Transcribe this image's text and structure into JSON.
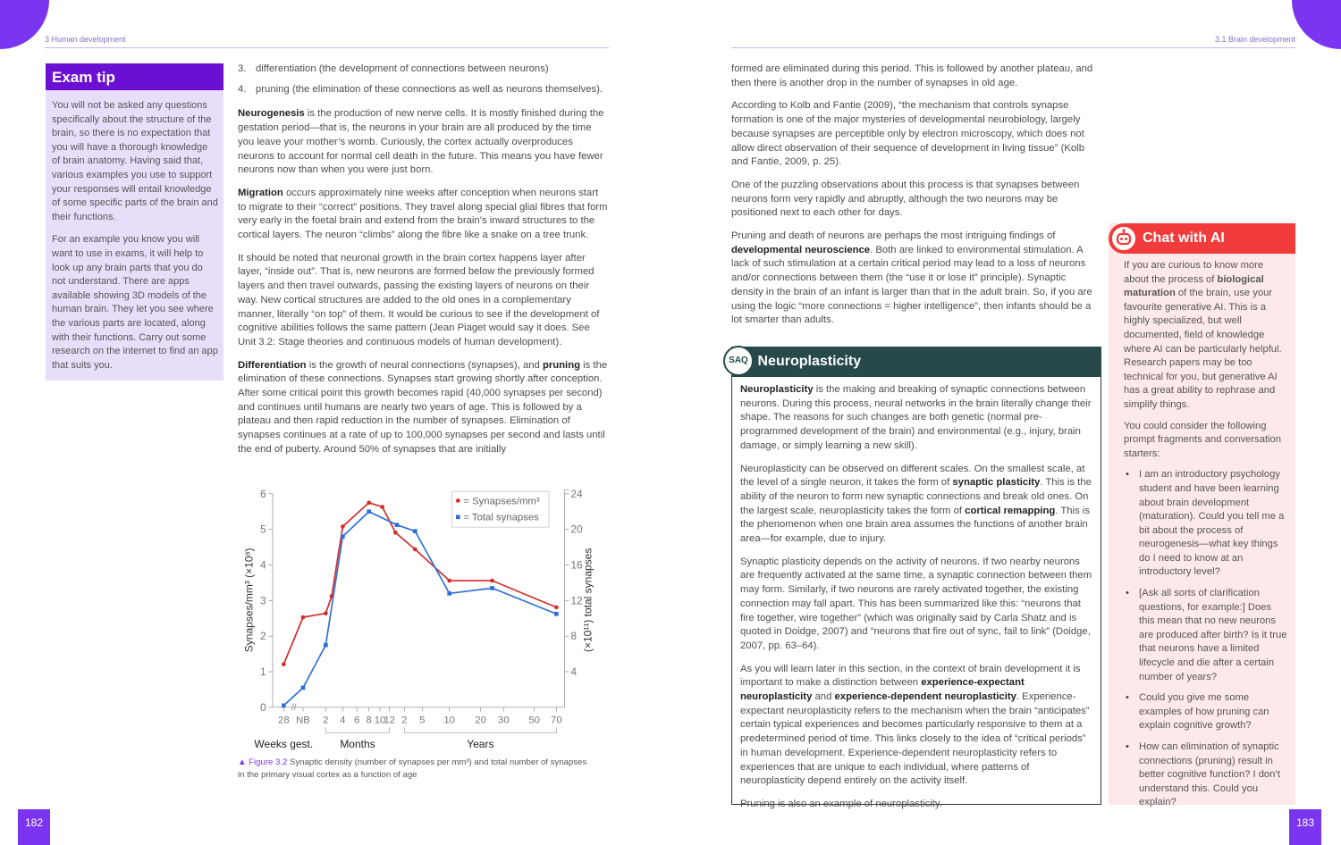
{
  "left_page": {
    "running_head": "3  Human development",
    "page_number": "182",
    "exam_tip": {
      "title": "Exam tip",
      "paragraphs": [
        "You will not be asked any questions specifically about the structure of the brain, so there is no expectation that you will have a thorough knowledge of brain anatomy. Having said that, various examples you use to support your responses will entail knowledge of some specific parts of the brain and their functions.",
        "For an example you know you will want to use in exams, it will help to look up any brain parts that you do not understand. There are apps available showing 3D models of the human brain. They let you see where the various parts are located, along with their functions. Carry out some research on the internet to find an app that suits you."
      ]
    },
    "list": [
      {
        "n": "3.",
        "text": "differentiation (the development of connections between neurons)"
      },
      {
        "n": "4.",
        "text": "pruning (the elimination of these connections as well as neurons themselves)."
      }
    ],
    "paragraphs": [
      [
        {
          "t": "Neurogenesis",
          "b": true
        },
        {
          "t": " is the production of new nerve cells. It is mostly finished during the gestation period—that is, the neurons in your brain are all produced by the time you leave your mother’s womb. Curiously, the cortex actually overproduces neurons to account for normal cell death in the future. This means you have fewer neurons now than when you were just born."
        }
      ],
      [
        {
          "t": "Migration",
          "b": true
        },
        {
          "t": " occurs approximately nine weeks after conception when neurons start to migrate to their “correct” positions. They travel along special glial fibres that form very early in the foetal brain and extend from the brain’s inward structures to the cortical layers. The neuron “climbs” along the fibre like a snake on a tree trunk."
        }
      ],
      [
        {
          "t": "It should be noted that neuronal growth in the brain cortex happens layer after layer, “inside out”. That is, new neurons are formed below the previously formed layers and then travel outwards, passing the existing layers of neurons on their way. New cortical structures are added to the old ones in a complementary manner, literally “on top” of them. It would be curious to see if the development of cognitive abilities follows the same pattern (Jean Piaget would say it does. See Unit 3.2: Stage theories and continuous models of human development)."
        }
      ],
      [
        {
          "t": "Differentiation",
          "b": true
        },
        {
          "t": " is the growth of neural connections (synapses), and "
        },
        {
          "t": "pruning",
          "b": true
        },
        {
          "t": " is the elimination of these connections. Synapses start growing shortly after conception. After some critical point this growth becomes rapid (40,000 synapses per second) and continues until humans are nearly two years of age. This is followed by a plateau and then rapid reduction in the number of synapses. Elimination of synapses continues at a rate of up to 100,000 synapses per second and lasts until the end of puberty. Around 50% of synapses that are initially"
        }
      ]
    ],
    "figure_caption": {
      "label": "Figure 3.2",
      "text": "Synaptic density (number of synapses per mm³) and total number of synapses in the primary visual cortex as a function of age"
    }
  },
  "chart_data": {
    "type": "line",
    "ylabel": "Synapses/mm³ (×10⁸)",
    "y2label": "(×10¹¹) total synapses",
    "ylim": [
      0,
      6
    ],
    "y2lim": [
      0,
      24
    ],
    "yticks": [
      "0",
      "1",
      "2",
      "3",
      "4",
      "5",
      "6"
    ],
    "y2ticks": [
      "4",
      "8",
      "12",
      "16",
      "20",
      "24"
    ],
    "xticks": [
      "28",
      "NB",
      "2",
      "4",
      "6",
      "8",
      "10",
      "12",
      "2",
      "5",
      "10",
      "20",
      "30",
      "50",
      "70"
    ],
    "xgroups": [
      "Weeks gest.",
      "Months",
      "Years"
    ],
    "grid": false,
    "legend_position": "top-right",
    "series": [
      {
        "name": "= Synapses/mm³",
        "axis": "left",
        "color": "#d42a2a",
        "marker": "circle",
        "points": [
          {
            "x": "28 weeks gest.",
            "y": 1.21
          },
          {
            "x": "NB",
            "y": 2.53
          },
          {
            "x": "2 months",
            "y": 2.64
          },
          {
            "x": "2.7 months",
            "y": 3.12
          },
          {
            "x": "4 months",
            "y": 5.08
          },
          {
            "x": "8 months",
            "y": 5.75
          },
          {
            "x": "10.5 months",
            "y": 5.63
          },
          {
            "x": "1.4 years",
            "y": 4.91
          },
          {
            "x": "3.8 years",
            "y": 4.44
          },
          {
            "x": "10 years",
            "y": 3.56
          },
          {
            "x": "25 years",
            "y": 3.56
          },
          {
            "x": "70 years",
            "y": 2.81
          }
        ]
      },
      {
        "name": "= Total synapses",
        "axis": "right",
        "color": "#2f6fd6",
        "marker": "square",
        "points": [
          {
            "x": "28 weeks gest.",
            "y": 0.2
          },
          {
            "x": "NB",
            "y": 2.2
          },
          {
            "x": "2 months",
            "y": 7.0
          },
          {
            "x": "4 months",
            "y": 19.2
          },
          {
            "x": "8 months",
            "y": 22.0
          },
          {
            "x": "1.5 years",
            "y": 20.5
          },
          {
            "x": "3.8 years",
            "y": 19.8
          },
          {
            "x": "10 years",
            "y": 12.8
          },
          {
            "x": "25 years",
            "y": 13.4
          },
          {
            "x": "70 years",
            "y": 10.5
          }
        ]
      }
    ]
  },
  "right_page": {
    "running_head": "3.1  Brain development",
    "page_number": "183",
    "paragraphs": [
      [
        {
          "t": "formed are eliminated during this period. This is followed by another plateau, and then there is another drop in the number of synapses in old age."
        }
      ],
      [
        {
          "t": "According to Kolb and Fantie (2009), “the mechanism that controls synapse formation is one of the major mysteries of developmental neurobiology, largely because synapses are perceptible only by electron microscopy, which does not allow direct observation of their sequence of development in living tissue” (Kolb and Fantie, 2009, p. 25)."
        }
      ],
      [
        {
          "t": "One of the puzzling observations about this process is that synapses between neurons form very rapidly and abruptly, although the two neurons may be positioned next to each other for days."
        }
      ],
      [
        {
          "t": "Pruning and death of neurons are perhaps the most intriguing findings of "
        },
        {
          "t": "developmental neuroscience",
          "b": true
        },
        {
          "t": ". Both are linked to environmental stimulation. A lack of such stimulation at a certain critical period may lead to a loss of neurons and/or connections between them (the “use it or lose it” principle). Synaptic density in the brain of an infant is larger than that in the adult brain. So, if you are using the logic “more connections = higher intelligence”, then infants should be a lot smarter than adults."
        }
      ]
    ],
    "saq": {
      "badge": "SAQ",
      "title": "Neuroplasticity",
      "paragraphs": [
        [
          {
            "t": "Neuroplasticity",
            "b": true
          },
          {
            "t": " is the making and breaking of synaptic connections between neurons. During this process, neural networks in the brain literally change their shape. The reasons for such changes are both genetic (normal pre-programmed development of the brain) and environmental (e.g., injury, brain damage, or simply learning a new skill)."
          }
        ],
        [
          {
            "t": "Neuroplasticity can be observed on different scales. On the smallest scale, at the level of a single neuron, it takes the form of "
          },
          {
            "t": "synaptic plasticity",
            "b": true
          },
          {
            "t": ". This is the ability of the neuron to form new synaptic connections and break old ones. On the largest scale, neuroplasticity takes the form of "
          },
          {
            "t": "cortical remapping",
            "b": true
          },
          {
            "t": ". This is the phenomenon when one brain area assumes the functions of another brain area—for example, due to injury."
          }
        ],
        [
          {
            "t": "Synaptic plasticity depends on the activity of neurons. If two nearby neurons are frequently activated at the same time, a synaptic connection between them may form. Similarly, if two neurons are rarely activated together, the existing connection may fall apart. This has been summarized like this: “neurons that fire together, wire together” (which was originally said by Carla Shatz and is quoted in Doidge, 2007) and “neurons that fire out of sync, fail to link” (Doidge, 2007, pp. 63–64)."
          }
        ],
        [
          {
            "t": "As you will learn later in this section, in the context of brain development it is important to make a distinction between "
          },
          {
            "t": "experience-expectant neuroplasticity",
            "b": true
          },
          {
            "t": " and "
          },
          {
            "t": "experience-dependent neuroplasticity",
            "b": true
          },
          {
            "t": ". Experience-expectant neuroplasticity refers to the mechanism when the brain “anticipates” certain typical experiences and becomes particularly responsive to them at a predetermined period of time. This links closely to the idea of “critical periods” in human development. Experience-dependent neuroplasticity refers to experiences that are unique to each individual, where patterns of neuroplasticity depend entirely on the activity itself."
          }
        ],
        [
          {
            "t": "Pruning is also an example of neuroplasticity."
          }
        ]
      ]
    },
    "chat_ai": {
      "icon": "robot-icon",
      "title": "Chat with AI",
      "paragraphs": [
        [
          {
            "t": "If you are curious to know more about the process of "
          },
          {
            "t": "biological maturation",
            "b": true
          },
          {
            "t": " of the brain, use your favourite generative AI. This is a highly specialized, but well documented, field of knowledge where AI can be particularly helpful. Research papers may be too technical for you, but generative AI has a great ability to rephrase and simplify things."
          }
        ],
        [
          {
            "t": "You could consider the following prompt fragments and conversation starters:"
          }
        ]
      ],
      "bullets": [
        "I am an introductory psychology student and have been learning about brain development (maturation). Could you tell me a bit about the process of neurogenesis—what key things do I need to know at an introductory level?",
        "[Ask all sorts of clarification questions, for example:] Does this mean that no new neurons are produced after birth? Is it true that neurons have a limited lifecycle and die after a certain number of years?",
        "Could you give me some examples of how pruning can explain cognitive growth?",
        "How can elimination of synaptic connections (pruning) result in better cognitive function? I don’t understand this. Could you explain?"
      ]
    },
    "accent_colors": {
      "purple": "#7b35f0",
      "exam_tip": "#6b0fd2",
      "saq": "#27494a",
      "chat_ai": "#f23b3b"
    }
  }
}
